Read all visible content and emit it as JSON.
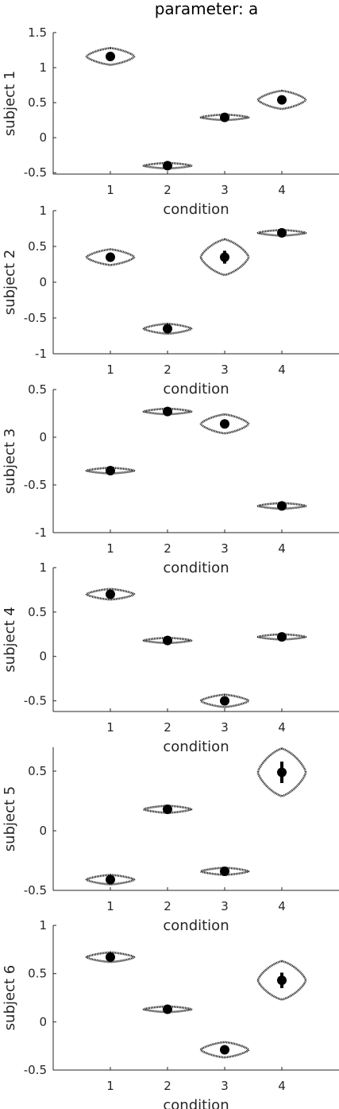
{
  "title": "parameter: a",
  "colors": {
    "axis": "#262626",
    "violin": "#000000",
    "marker": "#000000",
    "background": "#ffffff"
  },
  "chart_data": [
    {
      "type": "violin",
      "ylabel": "subject 1",
      "xlabel": "condition",
      "categories": [
        "1",
        "2",
        "3",
        "4"
      ],
      "yticks": [
        -0.5,
        0,
        0.5,
        1,
        1.5
      ],
      "yticklabels": [
        "-0.5",
        "0",
        "0.5",
        "1",
        "1.5"
      ],
      "ylim": [
        -0.52,
        1.5
      ],
      "xlim": [
        0,
        5
      ],
      "points": [
        {
          "x": 1,
          "mean": 1.16,
          "spread": 0.12,
          "err": 0.03
        },
        {
          "x": 2,
          "mean": -0.4,
          "spread": 0.04,
          "err": 0.02
        },
        {
          "x": 3,
          "mean": 0.29,
          "spread": 0.04,
          "err": 0.02
        },
        {
          "x": 4,
          "mean": 0.54,
          "spread": 0.13,
          "err": 0.04
        }
      ]
    },
    {
      "type": "violin",
      "ylabel": "subject 2",
      "xlabel": "condition",
      "categories": [
        "1",
        "2",
        "3",
        "4"
      ],
      "yticks": [
        -1,
        -0.5,
        0,
        0.5,
        1
      ],
      "yticklabels": [
        "-1",
        "-0.5",
        "0",
        "0.5",
        "1"
      ],
      "ylim": [
        -1,
        1
      ],
      "xlim": [
        0,
        5
      ],
      "points": [
        {
          "x": 1,
          "mean": 0.35,
          "spread": 0.11,
          "err": 0.03
        },
        {
          "x": 2,
          "mean": -0.65,
          "spread": 0.07,
          "err": 0.02
        },
        {
          "x": 3,
          "mean": 0.35,
          "spread": 0.25,
          "err": 0.09
        },
        {
          "x": 4,
          "mean": 0.69,
          "spread": 0.04,
          "err": 0.02
        }
      ]
    },
    {
      "type": "violin",
      "ylabel": "subject 3",
      "xlabel": "condition",
      "categories": [
        "1",
        "2",
        "3",
        "4"
      ],
      "yticks": [
        -1,
        -0.5,
        0,
        0.5
      ],
      "yticklabels": [
        "-1",
        "-0.5",
        "0",
        "0.5"
      ],
      "ylim": [
        -1,
        0.5
      ],
      "xlim": [
        0,
        5
      ],
      "points": [
        {
          "x": 1,
          "mean": -0.35,
          "spread": 0.03,
          "err": 0.01
        },
        {
          "x": 2,
          "mean": 0.27,
          "spread": 0.03,
          "err": 0.01
        },
        {
          "x": 3,
          "mean": 0.14,
          "spread": 0.1,
          "err": 0.03
        },
        {
          "x": 4,
          "mean": -0.72,
          "spread": 0.03,
          "err": 0.01
        }
      ]
    },
    {
      "type": "violin",
      "ylabel": "subject 4",
      "xlabel": "condition",
      "categories": [
        "1",
        "2",
        "3",
        "4"
      ],
      "yticks": [
        -0.5,
        0,
        0.5,
        1
      ],
      "yticklabels": [
        "-0.5",
        "0",
        "0.5",
        "1"
      ],
      "ylim": [
        -0.62,
        1
      ],
      "xlim": [
        0,
        5
      ],
      "points": [
        {
          "x": 1,
          "mean": 0.7,
          "spread": 0.06,
          "err": 0.02
        },
        {
          "x": 2,
          "mean": 0.18,
          "spread": 0.03,
          "err": 0.01
        },
        {
          "x": 3,
          "mean": -0.5,
          "spread": 0.07,
          "err": 0.02
        },
        {
          "x": 4,
          "mean": 0.22,
          "spread": 0.03,
          "err": 0.01
        }
      ]
    },
    {
      "type": "violin",
      "ylabel": "subject 5",
      "xlabel": "condition",
      "categories": [
        "1",
        "2",
        "3",
        "4"
      ],
      "yticks": [
        -0.5,
        0,
        0.5
      ],
      "yticklabels": [
        "-0.5",
        "0",
        "0.5"
      ],
      "ylim": [
        -0.5,
        0.7
      ],
      "xlim": [
        0,
        5
      ],
      "points": [
        {
          "x": 1,
          "mean": -0.41,
          "spread": 0.04,
          "err": 0.01
        },
        {
          "x": 2,
          "mean": 0.18,
          "spread": 0.03,
          "err": 0.01
        },
        {
          "x": 3,
          "mean": -0.34,
          "spread": 0.03,
          "err": 0.01
        },
        {
          "x": 4,
          "mean": 0.49,
          "spread": 0.2,
          "err": 0.09
        }
      ]
    },
    {
      "type": "violin",
      "ylabel": "subject 6",
      "xlabel": "condition",
      "categories": [
        "1",
        "2",
        "3",
        "4"
      ],
      "yticks": [
        -0.5,
        0,
        0.5,
        1
      ],
      "yticklabels": [
        "-0.5",
        "0",
        "0.5",
        "1"
      ],
      "ylim": [
        -0.5,
        1
      ],
      "xlim": [
        0,
        5
      ],
      "points": [
        {
          "x": 1,
          "mean": 0.67,
          "spread": 0.05,
          "err": 0.02
        },
        {
          "x": 2,
          "mean": 0.13,
          "spread": 0.03,
          "err": 0.01
        },
        {
          "x": 3,
          "mean": -0.29,
          "spread": 0.08,
          "err": 0.02
        },
        {
          "x": 4,
          "mean": 0.43,
          "spread": 0.2,
          "err": 0.08
        }
      ]
    }
  ]
}
